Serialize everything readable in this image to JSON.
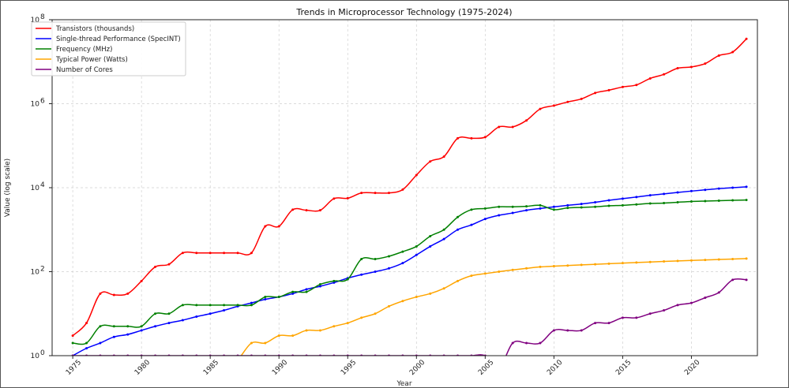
{
  "chart_data": {
    "type": "line",
    "title": "Trends in Microprocessor Technology (1975-2024)",
    "xlabel": "Year",
    "ylabel": "Value (log scale)",
    "xlim": [
      1975,
      2024
    ],
    "ylim": [
      1,
      100000000
    ],
    "yscale": "log",
    "grid": true,
    "legend_position": "top-left",
    "x_ticks": [
      1975,
      1980,
      1985,
      1990,
      1995,
      2000,
      2005,
      2010,
      2015,
      2020
    ],
    "y_ticks": [
      {
        "value": 1,
        "base": "10",
        "exp": "0"
      },
      {
        "value": 100,
        "base": "10",
        "exp": "2"
      },
      {
        "value": 10000,
        "base": "10",
        "exp": "4"
      },
      {
        "value": 1000000,
        "base": "10",
        "exp": "6"
      },
      {
        "value": 100000000,
        "base": "10",
        "exp": "8"
      }
    ],
    "x": [
      1975,
      1976,
      1977,
      1978,
      1979,
      1980,
      1981,
      1982,
      1983,
      1984,
      1985,
      1986,
      1987,
      1988,
      1989,
      1990,
      1991,
      1992,
      1993,
      1994,
      1995,
      1996,
      1997,
      1998,
      1999,
      2000,
      2001,
      2002,
      2003,
      2004,
      2005,
      2006,
      2007,
      2008,
      2009,
      2010,
      2011,
      2012,
      2013,
      2014,
      2015,
      2016,
      2017,
      2018,
      2019,
      2020,
      2021,
      2022,
      2023,
      2024
    ],
    "series": [
      {
        "name": "Transistors (thousands)",
        "color": "#ff0000",
        "values": [
          3,
          6,
          30,
          28,
          30,
          60,
          130,
          150,
          280,
          280,
          280,
          280,
          280,
          280,
          1200,
          1200,
          3000,
          2900,
          2900,
          5500,
          5600,
          7500,
          7500,
          7500,
          9000,
          20000,
          42000,
          55000,
          150000,
          150000,
          160000,
          280000,
          280000,
          400000,
          750000,
          900000,
          1100000,
          1300000,
          1800000,
          2100000,
          2500000,
          2800000,
          4000000,
          5000000,
          7000000,
          7500000,
          9000000,
          14000000,
          17000000,
          35000000
        ]
      },
      {
        "name": "Single-thread Performance (SpecINT)",
        "color": "#0000ff",
        "values": [
          1,
          1.5,
          2,
          2.8,
          3.2,
          4,
          5,
          6,
          7,
          8.5,
          10,
          12,
          15,
          18,
          22,
          25,
          30,
          38,
          45,
          55,
          70,
          85,
          100,
          120,
          160,
          250,
          400,
          600,
          1000,
          1300,
          1800,
          2200,
          2500,
          2900,
          3200,
          3500,
          3800,
          4100,
          4500,
          5000,
          5500,
          6000,
          6600,
          7100,
          7700,
          8300,
          8900,
          9500,
          10000,
          10500
        ]
      },
      {
        "name": "Frequency (MHz)",
        "color": "#008000",
        "values": [
          2,
          2,
          5,
          5,
          5,
          5,
          10,
          10,
          16,
          16,
          16,
          16,
          16,
          16,
          25,
          25,
          33,
          33,
          50,
          60,
          66,
          200,
          200,
          233,
          300,
          400,
          700,
          1000,
          2000,
          3000,
          3200,
          3500,
          3500,
          3600,
          3800,
          3000,
          3300,
          3400,
          3500,
          3700,
          3800,
          4000,
          4200,
          4300,
          4500,
          4700,
          4800,
          4900,
          5000,
          5100
        ]
      },
      {
        "name": "Typical Power (Watts)",
        "color": "#ffa500",
        "values": [
          0.5,
          0.5,
          0.5,
          0.5,
          0.5,
          0.5,
          0.5,
          0.5,
          0.5,
          0.5,
          0.5,
          0.5,
          0.8,
          2,
          2,
          3,
          3,
          4,
          4,
          5,
          6,
          8,
          10,
          15,
          20,
          25,
          30,
          40,
          60,
          80,
          90,
          100,
          110,
          120,
          130,
          135,
          140,
          145,
          150,
          155,
          160,
          165,
          170,
          175,
          180,
          185,
          190,
          195,
          200,
          205
        ]
      },
      {
        "name": "Number of Cores",
        "color": "#800080",
        "values": [
          1,
          1,
          1,
          1,
          1,
          1,
          1,
          1,
          1,
          1,
          1,
          1,
          1,
          1,
          1,
          1,
          1,
          1,
          1,
          1,
          1,
          1,
          1,
          1,
          1,
          1,
          1,
          1,
          1,
          1,
          1,
          0.5,
          2,
          2,
          2,
          4,
          4,
          4,
          6,
          6,
          8,
          8,
          10,
          12,
          16,
          18,
          24,
          32,
          64,
          64
        ]
      }
    ]
  }
}
